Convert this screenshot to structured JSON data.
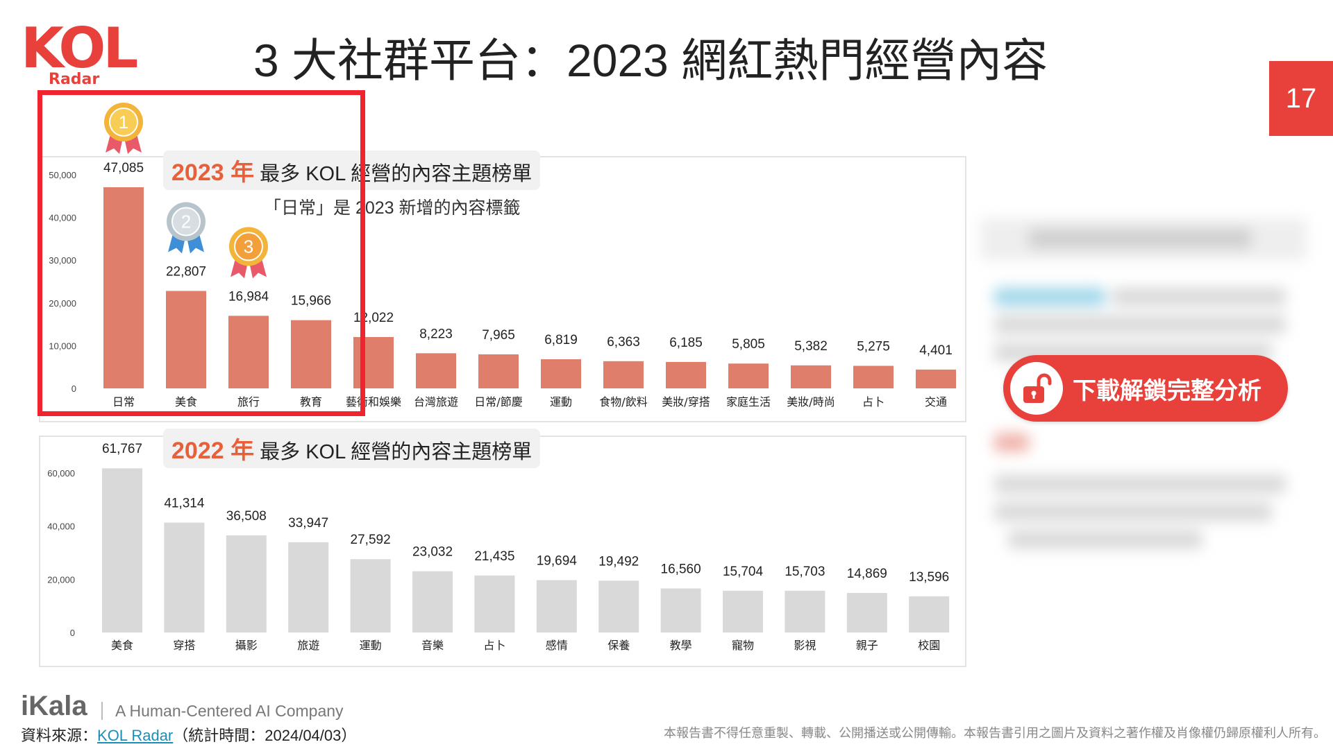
{
  "logo": {
    "main": "KOL",
    "sub": "Radar"
  },
  "page_title": "3 大社群平台：2023 網紅熱門經營內容",
  "page_number": "17",
  "charts": {
    "c2023": {
      "heading_year": "2023 年",
      "heading_text": " 最多 KOL 經營的內容主題榜單",
      "subtitle": "「日常」是 2023 新增的內容標籤"
    },
    "c2022": {
      "heading_year": "2022 年",
      "heading_text": " 最多 KOL 經營的內容主題榜單"
    }
  },
  "unlock_button": {
    "label": "下載解鎖完整分析"
  },
  "footer": {
    "brand": "iKala",
    "tagline": "A Human-Centered AI Company",
    "source_prefix": "資料來源：",
    "source_link": "KOL Radar",
    "source_suffix": "（統計時間：2024/04/03）",
    "disclaimer": "本報告書不得任意重製、轉載、公開播送或公開傳輸。本報告書引用之圖片及資料之著作權及肖像權仍歸原權利人所有。"
  },
  "colors": {
    "accent": "#e8403a",
    "bar_2023": "#df7e6a",
    "bar_2022": "#d9d9d9",
    "highlight": "#f0232f"
  },
  "medals": [
    "1",
    "2",
    "3"
  ],
  "chart_data": [
    {
      "type": "bar",
      "title": "2023 年 最多 KOL 經營的內容主題榜單",
      "categories": [
        "日常",
        "美食",
        "旅行",
        "教育",
        "藝術和娛樂",
        "台灣旅遊",
        "日常/節慶",
        "運動",
        "食物/飲料",
        "美妝/穿搭",
        "家庭生活",
        "美妝/時尚",
        "占卜",
        "交通"
      ],
      "values": [
        47085,
        22807,
        16984,
        15966,
        12022,
        8223,
        7965,
        6819,
        6363,
        6185,
        5805,
        5382,
        5275,
        4401
      ],
      "value_labels": [
        "47,085",
        "22,807",
        "16,984",
        "15,966",
        "12,022",
        "8,223",
        "7,965",
        "6,819",
        "6,363",
        "6,185",
        "5,805",
        "5,382",
        "5,275",
        "4,401"
      ],
      "yticks": [
        0,
        10000,
        20000,
        30000,
        40000,
        50000
      ],
      "ytick_labels": [
        "0",
        "10,000",
        "20,000",
        "30,000",
        "40,000",
        "50,000"
      ],
      "ylim": [
        0,
        50000
      ],
      "grid": false
    },
    {
      "type": "bar",
      "title": "2022 年 最多 KOL 經營的內容主題榜單",
      "categories": [
        "美食",
        "穿搭",
        "攝影",
        "旅遊",
        "運動",
        "音樂",
        "占卜",
        "感情",
        "保養",
        "教學",
        "寵物",
        "影視",
        "親子",
        "校園"
      ],
      "values": [
        61767,
        41314,
        36508,
        33947,
        27592,
        23032,
        21435,
        19694,
        19492,
        16560,
        15704,
        15703,
        14869,
        13596
      ],
      "value_labels": [
        "61,767",
        "41,314",
        "36,508",
        "33,947",
        "27,592",
        "23,032",
        "21,435",
        "19,694",
        "19,492",
        "16,560",
        "15,704",
        "15,703",
        "14,869",
        "13,596"
      ],
      "yticks": [
        0,
        20000,
        40000,
        60000
      ],
      "ytick_labels": [
        "0",
        "20,000",
        "40,000",
        "60,000"
      ],
      "ylim": [
        0,
        60000
      ],
      "grid": false
    }
  ]
}
